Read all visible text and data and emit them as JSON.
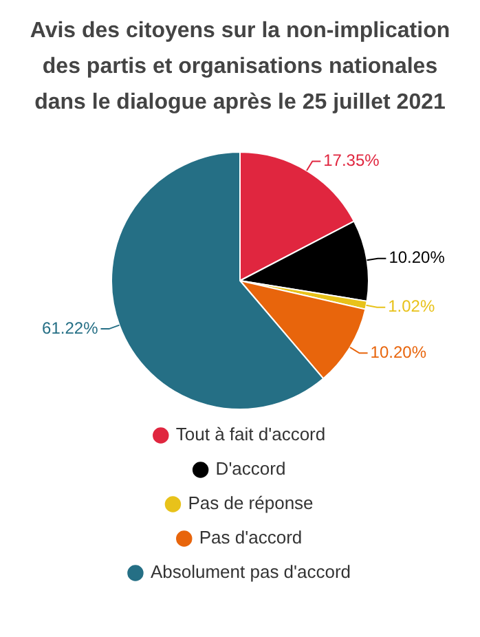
{
  "chart_data": {
    "type": "pie",
    "title": "Avis des citoyens sur la non-implication des partis et organisations nationales dans le dialogue après le 25 juillet 2021",
    "categories": [
      "Tout à fait d'accord",
      "D'accord",
      "Pas de réponse",
      "Pas d'accord",
      "Absolument pas d'accord"
    ],
    "values": [
      17.35,
      10.2,
      1.02,
      10.2,
      61.22
    ],
    "colors": [
      "#e0263f",
      "#000000",
      "#e8c21a",
      "#e8650c",
      "#256f85"
    ],
    "value_labels": [
      "17.35%",
      "10.20%",
      "1.02%",
      "10.20%",
      "61.22%"
    ],
    "legend": "bottom"
  }
}
